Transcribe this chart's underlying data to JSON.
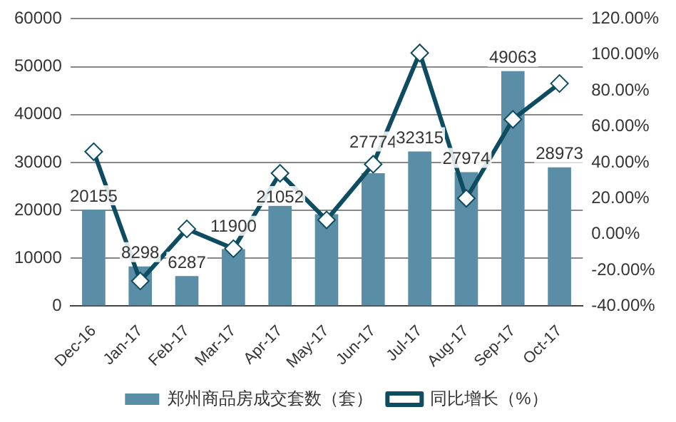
{
  "chart_data": {
    "type": "bar",
    "categories": [
      "Dec-16",
      "Jan-17",
      "Feb-17",
      "Mar-17",
      "Apr-17",
      "May-17",
      "Jun-17",
      "Jul-17",
      "Aug-17",
      "Sep-17",
      "Oct-17"
    ],
    "series": [
      {
        "name": "郑州商品房成交套数（套）",
        "color": "#5a8ea6",
        "values": [
          20155,
          8298,
          6287,
          11900,
          21052,
          19200,
          27774,
          32315,
          27974,
          49063,
          28973
        ],
        "value_labels": [
          "20155",
          "8298",
          "6287",
          "11900",
          "21052",
          null,
          "27774",
          "32315",
          "27974",
          "49063",
          "28973"
        ]
      },
      {
        "name": "同比增长（%）",
        "type": "line",
        "axis": "y2",
        "color": "#0e4d61",
        "marker": "diamond",
        "values": [
          46,
          -26,
          3,
          -8,
          34,
          8,
          39,
          101,
          20,
          64,
          84
        ]
      }
    ],
    "ylim": [
      0,
      60000
    ],
    "yticks": [
      0,
      10000,
      20000,
      30000,
      40000,
      50000,
      60000
    ],
    "y2lim": [
      -40,
      120
    ],
    "y2ticks": [
      {
        "value": -40,
        "label": "-40.00%"
      },
      {
        "value": -20,
        "label": "-20.00%"
      },
      {
        "value": 0,
        "label": "0.00%"
      },
      {
        "value": 20,
        "label": "20.00%"
      },
      {
        "value": 40,
        "label": "40.00%"
      },
      {
        "value": 60,
        "label": "60.00%"
      },
      {
        "value": 80,
        "label": "80.00%"
      },
      {
        "value": 100,
        "label": "100.00%"
      },
      {
        "value": 120,
        "label": "120.00%"
      }
    ],
    "grid": "y",
    "legend": "bottom"
  }
}
